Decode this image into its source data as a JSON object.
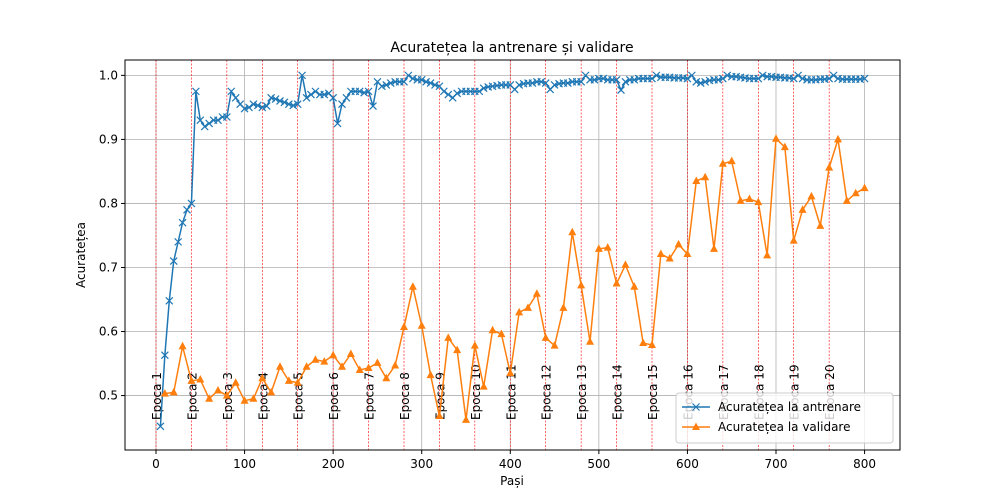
{
  "chart_data": {
    "type": "line",
    "title": "Acuratețea la antrenare și validare",
    "x_label": "Pași",
    "y_label": "Acuratețea",
    "xlim": [
      -35,
      840
    ],
    "ylim": [
      0.415,
      1.024
    ],
    "xticks": [
      0,
      100,
      200,
      300,
      400,
      500,
      600,
      700,
      800
    ],
    "yticks": [
      {
        "value": 0.5,
        "label": "0.5"
      },
      {
        "value": 0.6,
        "label": "0.6"
      },
      {
        "value": 0.7,
        "label": "0.7"
      },
      {
        "value": 0.8,
        "label": "0.8"
      },
      {
        "value": 0.9,
        "label": "0.9"
      },
      {
        "value": 1.0,
        "label": "1.0"
      }
    ],
    "grid": true,
    "legend_position": "lower right",
    "epoch_markers": {
      "color": "#ff0000",
      "x": [
        0,
        40,
        80,
        120,
        160,
        200,
        240,
        280,
        320,
        360,
        400,
        440,
        480,
        520,
        560,
        600,
        640,
        680,
        720,
        760
      ],
      "labels": [
        "Epoca 1",
        "Epoca 2",
        "Epoca 3",
        "Epoca 4",
        "Epoca 5",
        "Epoca 6",
        "Epoca 7",
        "Epoca 8",
        "Epoca 9",
        "Epoca 10",
        "Epoca 11",
        "Epoca 12",
        "Epoca 13",
        "Epoca 14",
        "Epoca 15",
        "Epoca 16",
        "Epoca 17",
        "Epoca 18",
        "Epoca 19",
        "Epoca 20"
      ]
    },
    "series": [
      {
        "name": "Acuratețea la antrenare",
        "color": "#1f77b4",
        "marker": "x",
        "x": [
          5,
          10,
          15,
          20,
          25,
          30,
          35,
          40,
          45,
          50,
          55,
          60,
          65,
          70,
          75,
          80,
          85,
          90,
          95,
          100,
          105,
          110,
          115,
          120,
          125,
          130,
          135,
          140,
          145,
          150,
          155,
          160,
          165,
          170,
          175,
          180,
          185,
          190,
          195,
          200,
          205,
          210,
          215,
          220,
          225,
          230,
          235,
          240,
          245,
          250,
          255,
          260,
          265,
          270,
          275,
          280,
          285,
          290,
          295,
          300,
          305,
          310,
          315,
          320,
          325,
          330,
          335,
          340,
          345,
          350,
          355,
          360,
          365,
          370,
          375,
          380,
          385,
          390,
          395,
          400,
          405,
          410,
          415,
          420,
          425,
          430,
          435,
          440,
          445,
          450,
          455,
          460,
          465,
          470,
          475,
          480,
          485,
          490,
          495,
          500,
          505,
          510,
          515,
          520,
          525,
          530,
          535,
          540,
          545,
          550,
          555,
          560,
          565,
          570,
          575,
          580,
          585,
          590,
          595,
          600,
          605,
          610,
          615,
          620,
          625,
          630,
          635,
          640,
          645,
          650,
          655,
          660,
          665,
          670,
          675,
          680,
          685,
          690,
          695,
          700,
          705,
          710,
          715,
          720,
          725,
          730,
          735,
          740,
          745,
          750,
          755,
          760,
          765,
          770,
          775,
          780,
          785,
          790,
          795,
          800
        ],
        "values": [
          0.452,
          0.563,
          0.648,
          0.71,
          0.74,
          0.77,
          0.79,
          0.8,
          0.975,
          0.93,
          0.92,
          0.925,
          0.93,
          0.93,
          0.935,
          0.935,
          0.975,
          0.965,
          0.955,
          0.948,
          0.95,
          0.955,
          0.953,
          0.95,
          0.952,
          0.965,
          0.963,
          0.96,
          0.958,
          0.955,
          0.953,
          0.955,
          1.0,
          0.965,
          0.97,
          0.975,
          0.97,
          0.97,
          0.972,
          0.965,
          0.925,
          0.955,
          0.965,
          0.975,
          0.975,
          0.975,
          0.973,
          0.975,
          0.952,
          0.99,
          0.983,
          0.985,
          0.988,
          0.99,
          0.99,
          0.99,
          1.0,
          0.995,
          0.993,
          0.993,
          0.99,
          0.988,
          0.985,
          0.983,
          0.975,
          0.97,
          0.965,
          0.972,
          0.975,
          0.975,
          0.975,
          0.975,
          0.975,
          0.98,
          0.982,
          0.983,
          0.984,
          0.985,
          0.985,
          0.985,
          0.978,
          0.985,
          0.987,
          0.988,
          0.988,
          0.99,
          0.99,
          0.988,
          0.978,
          0.985,
          0.987,
          0.988,
          0.988,
          0.99,
          0.99,
          0.99,
          1.0,
          0.993,
          0.993,
          0.995,
          0.995,
          0.993,
          0.993,
          0.993,
          0.977,
          0.99,
          0.993,
          0.993,
          0.995,
          0.995,
          0.995,
          0.995,
          1.0,
          0.997,
          0.997,
          0.997,
          0.996,
          0.996,
          0.996,
          0.995,
          1.0,
          0.99,
          0.988,
          0.99,
          0.992,
          0.993,
          0.993,
          0.995,
          1.0,
          0.998,
          0.998,
          0.997,
          0.996,
          0.995,
          0.995,
          0.995,
          1.0,
          0.998,
          0.998,
          0.997,
          0.997,
          0.996,
          0.996,
          0.995,
          1.0,
          0.995,
          0.993,
          0.993,
          0.993,
          0.994,
          0.994,
          0.995,
          1.0,
          0.995,
          0.994,
          0.994,
          0.994,
          0.994,
          0.994,
          0.995
        ]
      },
      {
        "name": "Acuratețea la validare",
        "color": "#ff7f0e",
        "marker": "triangle",
        "x": [
          10,
          20,
          30,
          40,
          50,
          60,
          70,
          80,
          90,
          100,
          110,
          120,
          130,
          140,
          150,
          160,
          170,
          180,
          190,
          200,
          210,
          220,
          230,
          240,
          250,
          260,
          270,
          280,
          290,
          300,
          310,
          320,
          330,
          340,
          350,
          360,
          370,
          380,
          390,
          400,
          410,
          420,
          430,
          440,
          450,
          460,
          470,
          480,
          490,
          500,
          510,
          520,
          530,
          540,
          550,
          560,
          570,
          580,
          590,
          600,
          610,
          620,
          630,
          640,
          650,
          660,
          670,
          680,
          690,
          700,
          710,
          720,
          730,
          740,
          750,
          760,
          770,
          780,
          790,
          800
        ],
        "values": [
          0.503,
          0.505,
          0.577,
          0.523,
          0.525,
          0.495,
          0.508,
          0.5,
          0.52,
          0.492,
          0.495,
          0.527,
          0.505,
          0.545,
          0.523,
          0.52,
          0.545,
          0.556,
          0.553,
          0.563,
          0.545,
          0.565,
          0.54,
          0.543,
          0.551,
          0.527,
          0.547,
          0.607,
          0.67,
          0.609,
          0.532,
          0.468,
          0.59,
          0.571,
          0.462,
          0.578,
          0.514,
          0.602,
          0.596,
          0.535,
          0.63,
          0.637,
          0.659,
          0.59,
          0.578,
          0.637,
          0.755,
          0.672,
          0.584,
          0.729,
          0.731,
          0.675,
          0.704,
          0.67,
          0.582,
          0.579,
          0.721,
          0.714,
          0.736,
          0.721,
          0.835,
          0.841,
          0.729,
          0.862,
          0.866,
          0.804,
          0.807,
          0.802,
          0.719,
          0.901,
          0.888,
          0.742,
          0.79,
          0.811,
          0.765,
          0.856,
          0.9,
          0.804,
          0.816,
          0.824
        ]
      }
    ]
  }
}
